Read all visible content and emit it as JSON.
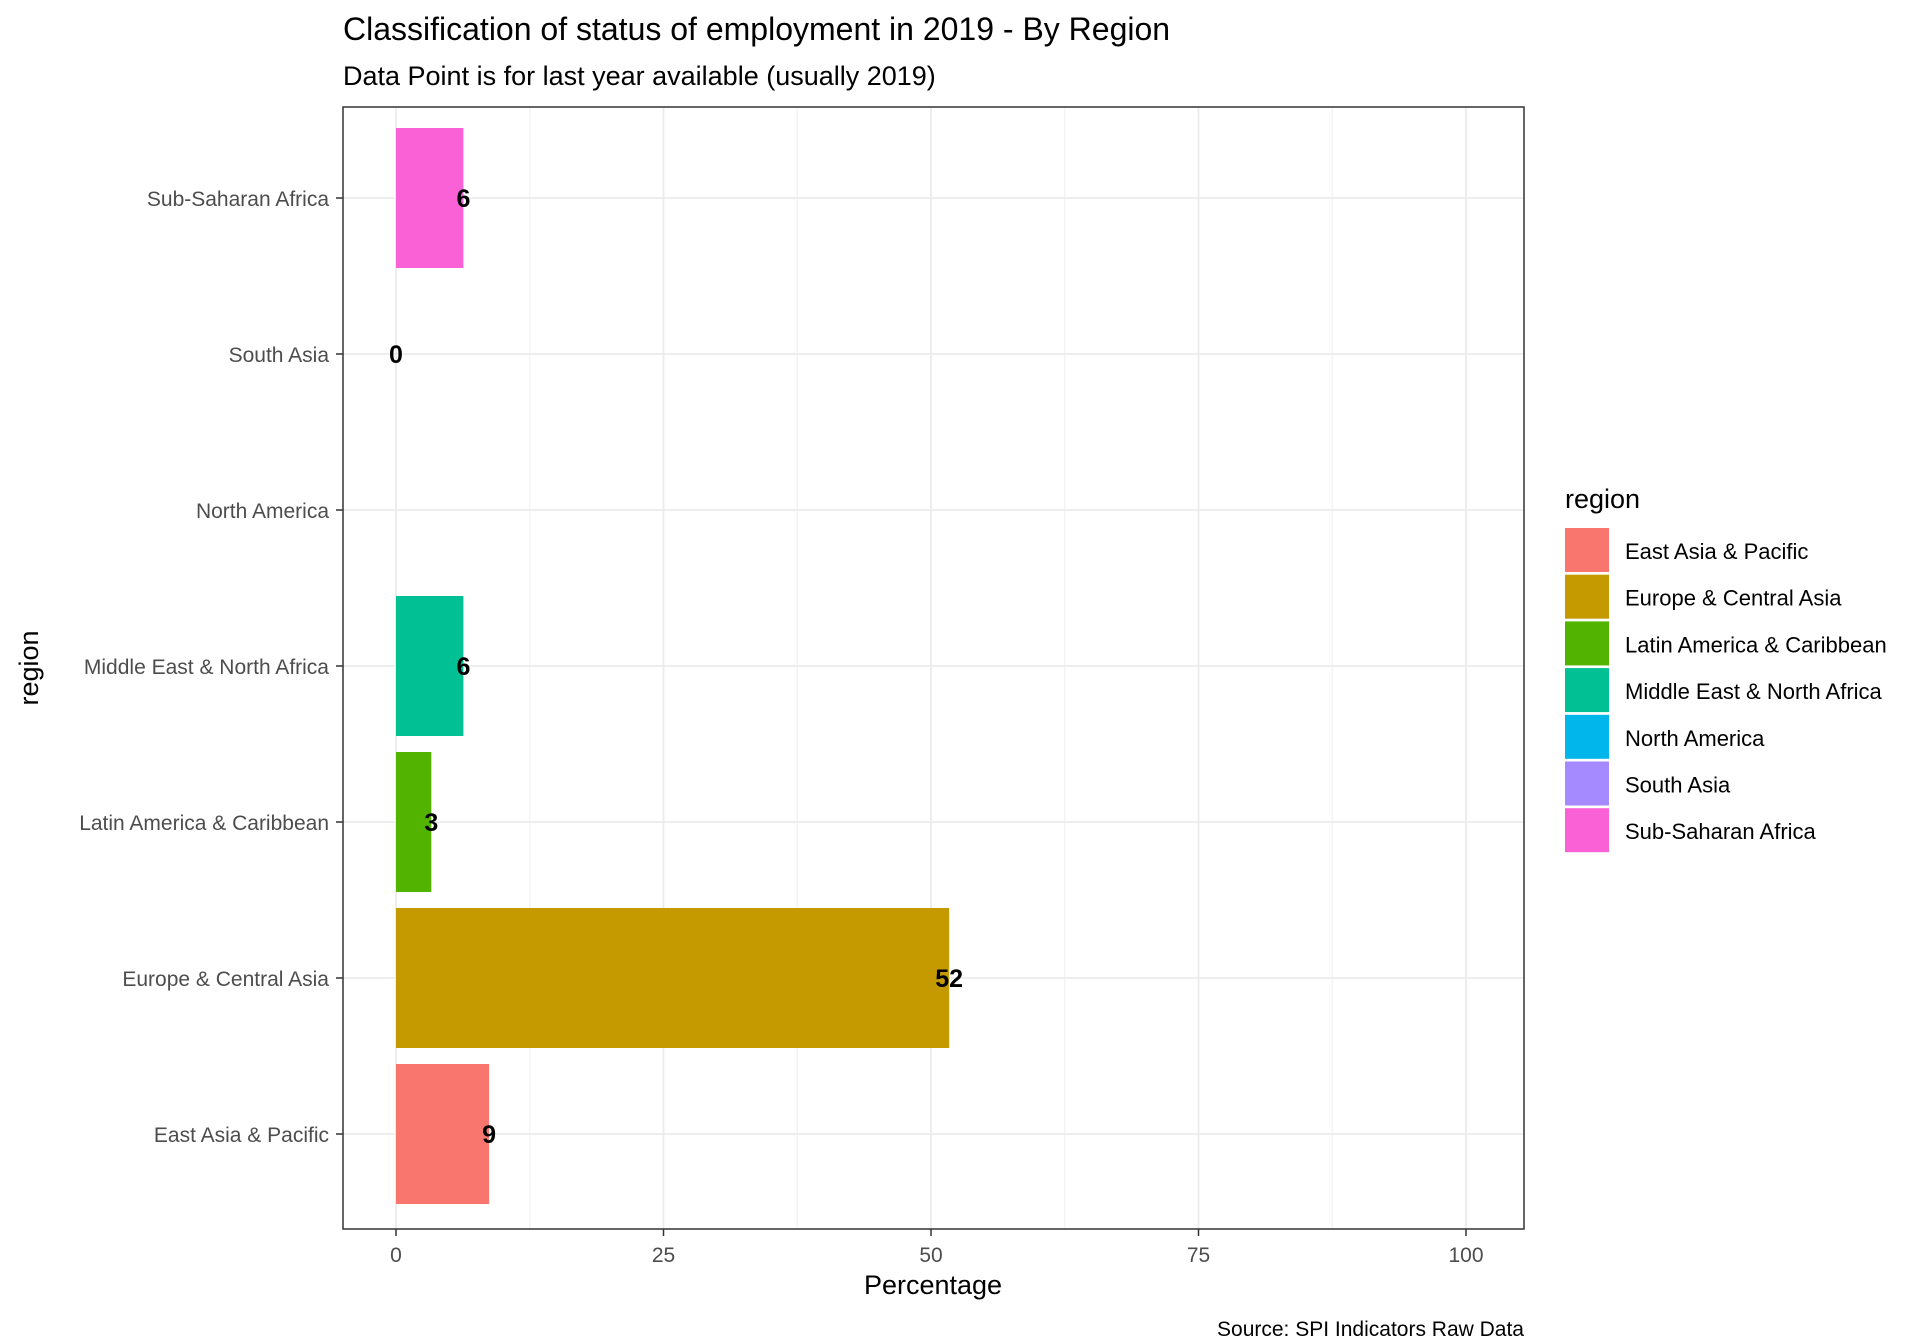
{
  "chart_data": {
    "type": "bar",
    "orientation": "horizontal",
    "title": "Classification of status of employment in 2019 - By Region",
    "subtitle": "Data Point is for last year available (usually 2019)",
    "xlabel": "Percentage",
    "ylabel": "region",
    "caption": "Source: SPI Indicators Raw Data",
    "xlim": [
      0,
      100
    ],
    "x_ticks": [
      "0",
      "25",
      "50",
      "75",
      "100"
    ],
    "x_tick_values": [
      0,
      25,
      50,
      75,
      100
    ],
    "grid": true,
    "legend_position": "right",
    "legend_title": "region",
    "categories": [
      "East Asia & Pacific",
      "Europe & Central Asia",
      "Latin America & Caribbean",
      "Middle East & North Africa",
      "North America",
      "South Asia",
      "Sub-Saharan Africa"
    ],
    "values": [
      8.7,
      51.7,
      3.3,
      6.3,
      null,
      0,
      6.3
    ],
    "data_labels": [
      "9",
      "52",
      "3",
      "6",
      "",
      "0",
      "6"
    ],
    "colors": [
      "#F8766D",
      "#C49A00",
      "#53B400",
      "#00C094",
      "#00B6EB",
      "#A58AFF",
      "#FB61D7"
    ]
  }
}
